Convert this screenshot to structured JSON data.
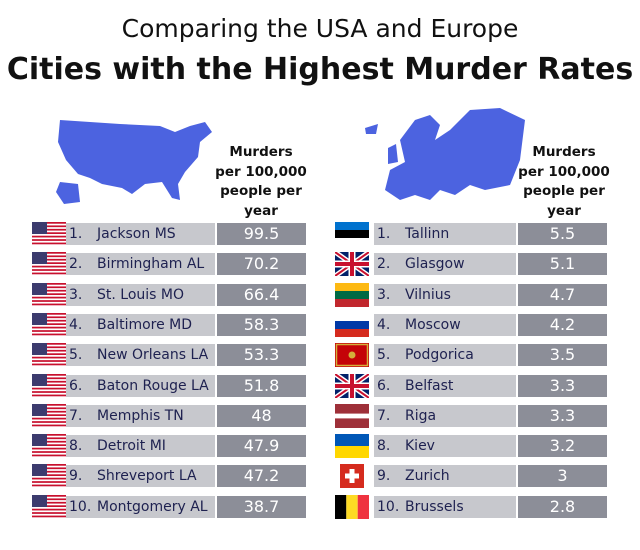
{
  "header": {
    "title": "Comparing the USA and Europe",
    "subtitle": "Cities with the Highest Murder Rates"
  },
  "tables": [
    {
      "header": "Murders per 100,000 people per year",
      "rows": [
        {
          "rank": "1.",
          "city": "Jackson MS",
          "rate": 99.5
        },
        {
          "rank": "2.",
          "city": "Birmingham AL",
          "rate": 70.2
        },
        {
          "rank": "3.",
          "city": "St. Louis MO",
          "rate": 66.4
        },
        {
          "rank": "4.",
          "city": "Baltimore MD",
          "rate": 58.3
        },
        {
          "rank": "5.",
          "city": "New Orleans LA",
          "rate": 53.3
        },
        {
          "rank": "6.",
          "city": "Baton Rouge LA",
          "rate": 51.8
        },
        {
          "rank": "7.",
          "city": "Memphis TN",
          "rate": 48
        },
        {
          "rank": "8.",
          "city": "Detroit MI",
          "rate": 47.9
        },
        {
          "rank": "9.",
          "city": "Shreveport LA",
          "rate": 47.2
        },
        {
          "rank": "10.",
          "city": "Montgomery AL",
          "rate": 38.7
        }
      ]
    },
    {
      "header": "Murders per 100,000 people per year",
      "rows": [
        {
          "rank": "1.",
          "city": "Tallinn",
          "rate": 5.5
        },
        {
          "rank": "2.",
          "city": "Glasgow",
          "rate": 5.1
        },
        {
          "rank": "3.",
          "city": "Vilnius",
          "rate": 4.7
        },
        {
          "rank": "4.",
          "city": "Moscow",
          "rate": 4.2
        },
        {
          "rank": "5.",
          "city": "Podgorica",
          "rate": 3.5
        },
        {
          "rank": "6.",
          "city": "Belfast",
          "rate": 3.3
        },
        {
          "rank": "7.",
          "city": "Riga",
          "rate": 3.3
        },
        {
          "rank": "8.",
          "city": "Kiev",
          "rate": 3.2
        },
        {
          "rank": "9.",
          "city": "Zurich",
          "rate": 3
        },
        {
          "rank": "10.",
          "city": "Brussels",
          "rate": 2.8
        }
      ]
    }
  ]
}
